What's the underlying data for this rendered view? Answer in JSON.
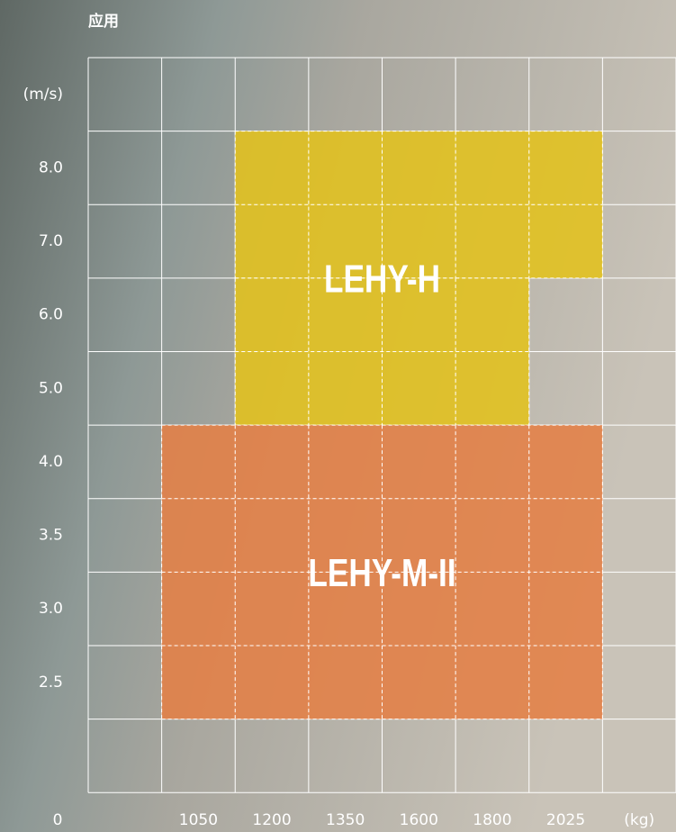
{
  "chart_data": {
    "type": "region",
    "title": "应用",
    "y_label": "(m/s)",
    "x_label": "(kg)",
    "origin_label": "0",
    "categories": [
      "1050",
      "1200",
      "1350",
      "1600",
      "1800",
      "2025"
    ],
    "speeds": [
      "8.0",
      "7.0",
      "6.0",
      "5.0",
      "4.0",
      "3.5",
      "3.0",
      "2.5"
    ],
    "regions": [
      {
        "name": "LEHY-H",
        "color": "#e2c11c",
        "blocks": [
          {
            "speeds": [
              "8.0",
              "7.0"
            ],
            "loads": [
              "1200",
              "2025"
            ]
          },
          {
            "speeds": [
              "6.0",
              "5.0"
            ],
            "loads": [
              "1200",
              "1800"
            ]
          }
        ]
      },
      {
        "name": "LEHY-M-II",
        "color": "#e47f45",
        "blocks": [
          {
            "speeds": [
              "4.0",
              "2.5"
            ],
            "loads": [
              "1050",
              "2025"
            ]
          }
        ]
      }
    ]
  }
}
